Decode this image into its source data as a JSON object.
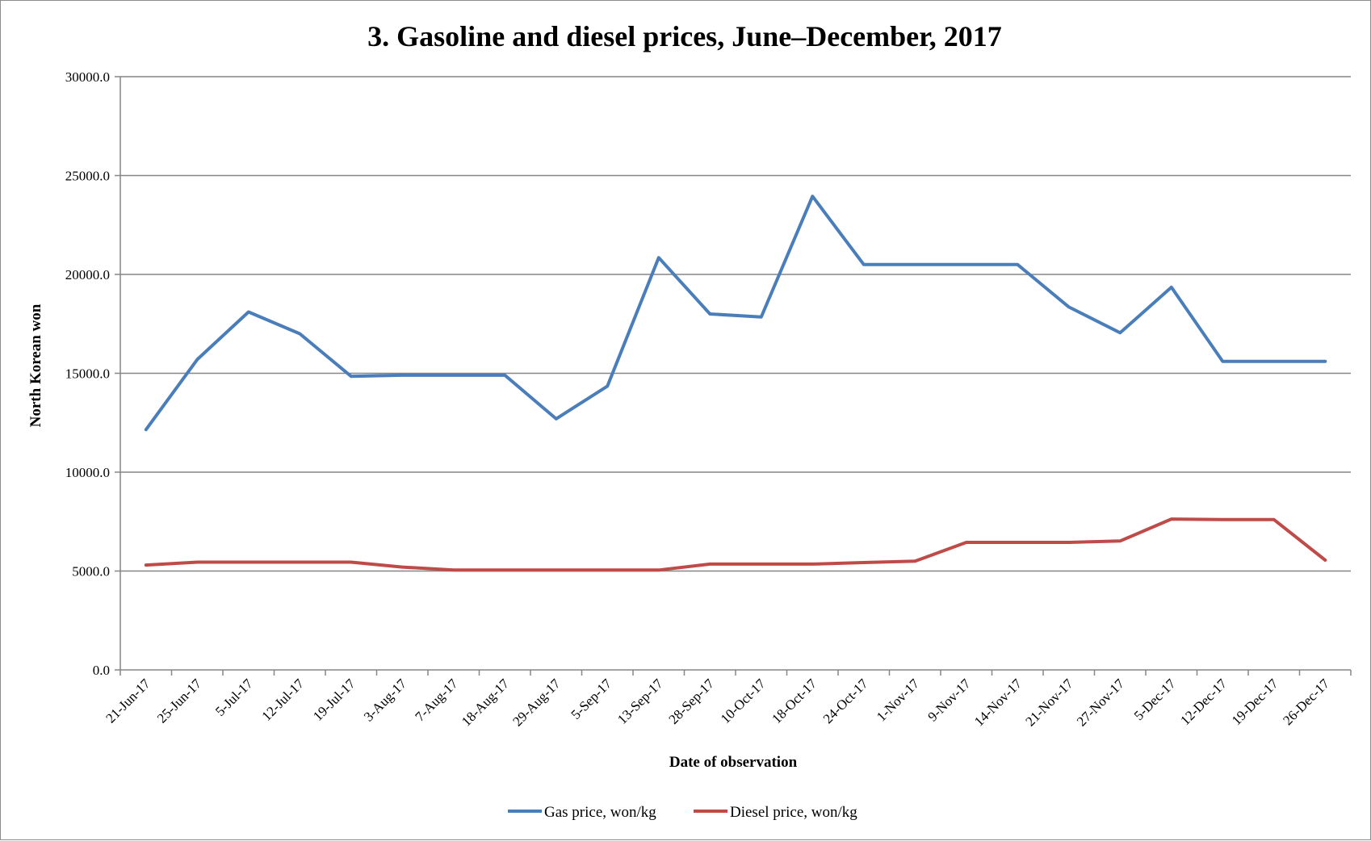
{
  "chart_data": {
    "type": "line",
    "title": "3. Gasoline and diesel prices, June–December, 2017",
    "xlabel": "Date of observation",
    "ylabel": "North Korean won",
    "ylim": [
      0,
      30000
    ],
    "yticks": [
      "0.0",
      "5000.0",
      "10000.0",
      "15000.0",
      "20000.0",
      "25000.0",
      "30000.0"
    ],
    "grid": "horizontal",
    "legend": "bottom",
    "categories": [
      "21-Jun-17",
      "25-Jun-17",
      "5-Jul-17",
      "12-Jul-17",
      "19-Jul-17",
      "3-Aug-17",
      "7-Aug-17",
      "18-Aug-17",
      "29-Aug-17",
      "5-Sep-17",
      "13-Sep-17",
      "28-Sep-17",
      "10-Oct-17",
      "18-Oct-17",
      "24-Oct-17",
      "1-Nov-17",
      "9-Nov-17",
      "14-Nov-17",
      "21-Nov-17",
      "27-Nov-17",
      "5-Dec-17",
      "12-Dec-17",
      "19-Dec-17",
      "26-Dec-17"
    ],
    "series": [
      {
        "name": "Gas price, won/kg",
        "color": "#4a7ebb",
        "values": [
          12150,
          15700,
          18100,
          17000,
          14850,
          14900,
          14900,
          14900,
          12700,
          14350,
          20850,
          18000,
          17850,
          23950,
          20500,
          20500,
          20500,
          20500,
          18350,
          17050,
          19350,
          15600,
          15600,
          15600
        ]
      },
      {
        "name": "Diesel price, won/kg",
        "color": "#be4b48",
        "values": [
          5300,
          5450,
          5450,
          5450,
          5450,
          5200,
          5050,
          5050,
          5050,
          5050,
          5050,
          5350,
          5350,
          5350,
          5430,
          5500,
          6450,
          6450,
          6450,
          6520,
          7630,
          7600,
          7600,
          5550
        ]
      }
    ]
  }
}
